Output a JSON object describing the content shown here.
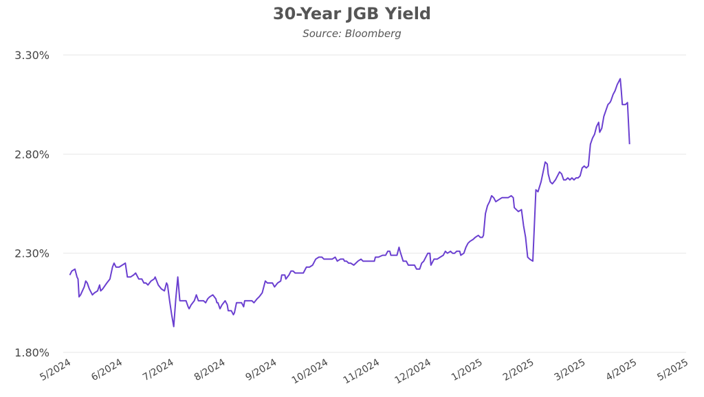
{
  "chart_data": {
    "type": "line",
    "title": "30-Year JGB Yield",
    "subtitle": "Source: Bloomberg",
    "xlabel": "",
    "ylabel": "",
    "ylim": [
      1.8,
      3.3
    ],
    "y_ticks": [
      {
        "value": 1.8,
        "label": "1.80%"
      },
      {
        "value": 2.3,
        "label": "2.30%"
      },
      {
        "value": 2.8,
        "label": "2.80%"
      },
      {
        "value": 3.3,
        "label": "3.30%"
      }
    ],
    "x_ticks": [
      {
        "value": 0,
        "label": "5/2024"
      },
      {
        "value": 1,
        "label": "6/2024"
      },
      {
        "value": 2,
        "label": "7/2024"
      },
      {
        "value": 3,
        "label": "8/2024"
      },
      {
        "value": 4,
        "label": "9/2024"
      },
      {
        "value": 5,
        "label": "10/2024"
      },
      {
        "value": 6,
        "label": "11/2024"
      },
      {
        "value": 7,
        "label": "12/2024"
      },
      {
        "value": 8,
        "label": "1/2025"
      },
      {
        "value": 9,
        "label": "2/2025"
      },
      {
        "value": 10,
        "label": "3/2025"
      },
      {
        "value": 11,
        "label": "4/2025"
      },
      {
        "value": 12,
        "label": "5/2025"
      }
    ],
    "grid": true,
    "line_color": "#6a3fd0",
    "grid_color": "#e6e6e6",
    "series": [
      {
        "points": [
          [
            0.02,
            2.19
          ],
          [
            0.06,
            2.21
          ],
          [
            0.12,
            2.22
          ],
          [
            0.16,
            2.18
          ],
          [
            0.18,
            2.17
          ],
          [
            0.2,
            2.08
          ],
          [
            0.23,
            2.09
          ],
          [
            0.3,
            2.13
          ],
          [
            0.33,
            2.16
          ],
          [
            0.36,
            2.15
          ],
          [
            0.4,
            2.12
          ],
          [
            0.46,
            2.09
          ],
          [
            0.5,
            2.1
          ],
          [
            0.56,
            2.11
          ],
          [
            0.6,
            2.14
          ],
          [
            0.62,
            2.11
          ],
          [
            0.66,
            2.12
          ],
          [
            0.74,
            2.15
          ],
          [
            0.8,
            2.17
          ],
          [
            0.85,
            2.23
          ],
          [
            0.88,
            2.25
          ],
          [
            0.92,
            2.23
          ],
          [
            0.98,
            2.23
          ],
          [
            1.04,
            2.24
          ],
          [
            1.1,
            2.25
          ],
          [
            1.14,
            2.18
          ],
          [
            1.2,
            2.18
          ],
          [
            1.26,
            2.19
          ],
          [
            1.3,
            2.2
          ],
          [
            1.36,
            2.17
          ],
          [
            1.42,
            2.17
          ],
          [
            1.46,
            2.15
          ],
          [
            1.5,
            2.15
          ],
          [
            1.54,
            2.14
          ],
          [
            1.6,
            2.16
          ],
          [
            1.66,
            2.17
          ],
          [
            1.68,
            2.18
          ],
          [
            1.74,
            2.14
          ],
          [
            1.8,
            2.12
          ],
          [
            1.86,
            2.11
          ],
          [
            1.9,
            2.15
          ],
          [
            1.92,
            2.14
          ],
          [
            1.96,
            2.06
          ],
          [
            2.0,
            1.99
          ],
          [
            2.04,
            1.93
          ],
          [
            2.08,
            2.07
          ],
          [
            2.12,
            2.18
          ],
          [
            2.16,
            2.06
          ],
          [
            2.22,
            2.06
          ],
          [
            2.28,
            2.06
          ],
          [
            2.32,
            2.03
          ],
          [
            2.34,
            2.02
          ],
          [
            2.38,
            2.04
          ],
          [
            2.44,
            2.06
          ],
          [
            2.48,
            2.09
          ],
          [
            2.52,
            2.06
          ],
          [
            2.56,
            2.06
          ],
          [
            2.62,
            2.06
          ],
          [
            2.66,
            2.05
          ],
          [
            2.7,
            2.07
          ],
          [
            2.74,
            2.08
          ],
          [
            2.8,
            2.09
          ],
          [
            2.86,
            2.07
          ],
          [
            2.88,
            2.05
          ],
          [
            2.9,
            2.05
          ],
          [
            2.94,
            2.02
          ],
          [
            2.98,
            2.04
          ],
          [
            3.04,
            2.06
          ],
          [
            3.08,
            2.04
          ],
          [
            3.1,
            2.01
          ],
          [
            3.14,
            2.01
          ],
          [
            3.16,
            2.01
          ],
          [
            3.2,
            1.99
          ],
          [
            3.22,
            2.0
          ],
          [
            3.26,
            2.05
          ],
          [
            3.3,
            2.05
          ],
          [
            3.36,
            2.05
          ],
          [
            3.4,
            2.03
          ],
          [
            3.42,
            2.06
          ],
          [
            3.48,
            2.06
          ],
          [
            3.56,
            2.06
          ],
          [
            3.6,
            2.05
          ],
          [
            3.66,
            2.07
          ],
          [
            3.7,
            2.08
          ],
          [
            3.76,
            2.1
          ],
          [
            3.82,
            2.16
          ],
          [
            3.86,
            2.15
          ],
          [
            3.92,
            2.15
          ],
          [
            3.96,
            2.15
          ],
          [
            4.0,
            2.13
          ],
          [
            4.06,
            2.15
          ],
          [
            4.12,
            2.16
          ],
          [
            4.14,
            2.19
          ],
          [
            4.2,
            2.19
          ],
          [
            4.22,
            2.17
          ],
          [
            4.28,
            2.19
          ],
          [
            4.32,
            2.21
          ],
          [
            4.36,
            2.21
          ],
          [
            4.4,
            2.2
          ],
          [
            4.46,
            2.2
          ],
          [
            4.52,
            2.2
          ],
          [
            4.56,
            2.2
          ],
          [
            4.62,
            2.23
          ],
          [
            4.68,
            2.23
          ],
          [
            4.74,
            2.24
          ],
          [
            4.8,
            2.27
          ],
          [
            4.86,
            2.28
          ],
          [
            4.92,
            2.28
          ],
          [
            4.96,
            2.27
          ],
          [
            5.04,
            2.27
          ],
          [
            5.12,
            2.27
          ],
          [
            5.18,
            2.28
          ],
          [
            5.22,
            2.26
          ],
          [
            5.28,
            2.27
          ],
          [
            5.34,
            2.27
          ],
          [
            5.36,
            2.26
          ],
          [
            5.4,
            2.26
          ],
          [
            5.44,
            2.25
          ],
          [
            5.48,
            2.25
          ],
          [
            5.54,
            2.24
          ],
          [
            5.58,
            2.25
          ],
          [
            5.62,
            2.26
          ],
          [
            5.68,
            2.27
          ],
          [
            5.72,
            2.26
          ],
          [
            5.8,
            2.26
          ],
          [
            5.86,
            2.26
          ],
          [
            5.94,
            2.26
          ],
          [
            5.96,
            2.28
          ],
          [
            6.02,
            2.28
          ],
          [
            6.1,
            2.29
          ],
          [
            6.16,
            2.29
          ],
          [
            6.2,
            2.31
          ],
          [
            6.24,
            2.31
          ],
          [
            6.26,
            2.29
          ],
          [
            6.32,
            2.29
          ],
          [
            6.38,
            2.29
          ],
          [
            6.42,
            2.33
          ],
          [
            6.44,
            2.31
          ],
          [
            6.5,
            2.26
          ],
          [
            6.56,
            2.26
          ],
          [
            6.6,
            2.24
          ],
          [
            6.66,
            2.24
          ],
          [
            6.72,
            2.24
          ],
          [
            6.76,
            2.22
          ],
          [
            6.82,
            2.22
          ],
          [
            6.86,
            2.25
          ],
          [
            6.9,
            2.26
          ],
          [
            6.94,
            2.28
          ],
          [
            6.98,
            2.3
          ],
          [
            7.02,
            2.3
          ],
          [
            7.04,
            2.24
          ],
          [
            7.1,
            2.27
          ],
          [
            7.16,
            2.27
          ],
          [
            7.22,
            2.28
          ],
          [
            7.28,
            2.29
          ],
          [
            7.32,
            2.31
          ],
          [
            7.36,
            2.3
          ],
          [
            7.42,
            2.31
          ],
          [
            7.46,
            2.3
          ],
          [
            7.5,
            2.3
          ],
          [
            7.54,
            2.31
          ],
          [
            7.6,
            2.31
          ],
          [
            7.62,
            2.29
          ],
          [
            7.68,
            2.3
          ],
          [
            7.72,
            2.33
          ],
          [
            7.76,
            2.35
          ],
          [
            7.8,
            2.36
          ],
          [
            7.86,
            2.37
          ],
          [
            7.9,
            2.38
          ],
          [
            7.96,
            2.39
          ],
          [
            8.0,
            2.38
          ],
          [
            8.04,
            2.38
          ],
          [
            8.06,
            2.39
          ],
          [
            8.1,
            2.5
          ],
          [
            8.14,
            2.54
          ],
          [
            8.18,
            2.56
          ],
          [
            8.22,
            2.59
          ],
          [
            8.26,
            2.58
          ],
          [
            8.3,
            2.56
          ],
          [
            8.36,
            2.57
          ],
          [
            8.42,
            2.58
          ],
          [
            8.48,
            2.58
          ],
          [
            8.54,
            2.58
          ],
          [
            8.6,
            2.59
          ],
          [
            8.64,
            2.58
          ],
          [
            8.66,
            2.53
          ],
          [
            8.7,
            2.52
          ],
          [
            8.74,
            2.51
          ],
          [
            8.8,
            2.52
          ],
          [
            8.84,
            2.44
          ],
          [
            8.88,
            2.38
          ],
          [
            8.92,
            2.28
          ],
          [
            8.96,
            2.27
          ],
          [
            9.02,
            2.26
          ],
          [
            9.06,
            2.5
          ],
          [
            9.08,
            2.62
          ],
          [
            9.12,
            2.61
          ],
          [
            9.18,
            2.66
          ],
          [
            9.22,
            2.71
          ],
          [
            9.26,
            2.76
          ],
          [
            9.3,
            2.75
          ],
          [
            9.32,
            2.7
          ],
          [
            9.36,
            2.66
          ],
          [
            9.4,
            2.65
          ],
          [
            9.46,
            2.67
          ],
          [
            9.5,
            2.69
          ],
          [
            9.54,
            2.71
          ],
          [
            9.58,
            2.7
          ],
          [
            9.62,
            2.67
          ],
          [
            9.66,
            2.67
          ],
          [
            9.7,
            2.68
          ],
          [
            9.74,
            2.67
          ],
          [
            9.78,
            2.68
          ],
          [
            9.82,
            2.67
          ],
          [
            9.86,
            2.68
          ],
          [
            9.9,
            2.68
          ],
          [
            9.94,
            2.69
          ],
          [
            9.98,
            2.73
          ],
          [
            10.02,
            2.74
          ],
          [
            10.06,
            2.73
          ],
          [
            10.1,
            2.74
          ],
          [
            10.14,
            2.85
          ],
          [
            10.18,
            2.88
          ],
          [
            10.22,
            2.9
          ],
          [
            10.26,
            2.94
          ],
          [
            10.3,
            2.96
          ],
          [
            10.32,
            2.91
          ],
          [
            10.36,
            2.93
          ],
          [
            10.4,
            2.99
          ],
          [
            10.44,
            3.02
          ],
          [
            10.48,
            3.05
          ],
          [
            10.52,
            3.06
          ],
          [
            10.54,
            3.07
          ],
          [
            10.58,
            3.1
          ],
          [
            10.62,
            3.12
          ],
          [
            10.66,
            3.15
          ],
          [
            10.72,
            3.18
          ],
          [
            10.74,
            3.12
          ],
          [
            10.76,
            3.05
          ],
          [
            10.82,
            3.05
          ],
          [
            10.86,
            3.06
          ],
          [
            10.9,
            2.85
          ]
        ]
      }
    ]
  }
}
